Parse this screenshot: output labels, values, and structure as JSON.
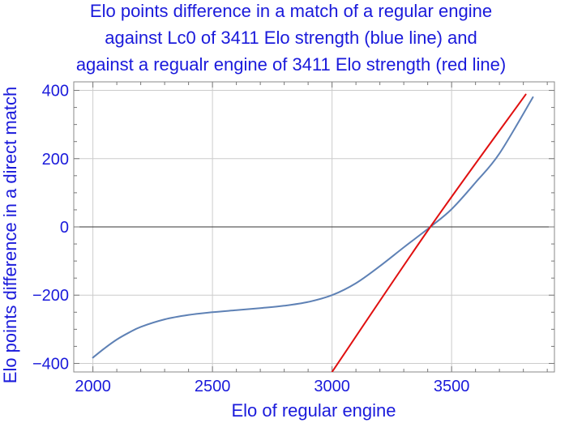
{
  "chart_data": {
    "type": "line",
    "title_lines": [
      "Elo points difference in a match of a regular engine",
      "against Lc0 of 3411 Elo strength (blue line) and",
      "against a regualr engine of 3411 Elo strength (red line)"
    ],
    "xlabel": "Elo of regular engine",
    "ylabel": "Elo points difference in a direct match",
    "xlim": [
      1920,
      3930
    ],
    "ylim": [
      -425,
      425
    ],
    "xticks": [
      2000,
      2500,
      3000,
      3500
    ],
    "yticks": [
      -400,
      -200,
      0,
      200,
      400
    ],
    "ytick_labels": [
      "−400",
      "−200",
      "0",
      "200",
      "400"
    ],
    "grid": true,
    "colors": {
      "blue_line": "#5e81b5",
      "red_line": "#e01010",
      "text": "#1a1adb",
      "grid": "#cccccc"
    },
    "series": [
      {
        "color": "#5e81b5",
        "x": [
          2000,
          2050,
          2100,
          2150,
          2200,
          2300,
          2400,
          2500,
          2600,
          2700,
          2800,
          2900,
          3000,
          3100,
          3200,
          3300,
          3411,
          3500,
          3600,
          3700,
          3840
        ],
        "y": [
          -383,
          -355,
          -330,
          -310,
          -293,
          -271,
          -258,
          -250,
          -244,
          -238,
          -231,
          -220,
          -200,
          -165,
          -115,
          -60,
          0,
          52,
          130,
          215,
          380
        ]
      },
      {
        "color": "#e01010",
        "x": [
          3000,
          3411,
          3810
        ],
        "y": [
          -425,
          0,
          388
        ]
      }
    ]
  }
}
